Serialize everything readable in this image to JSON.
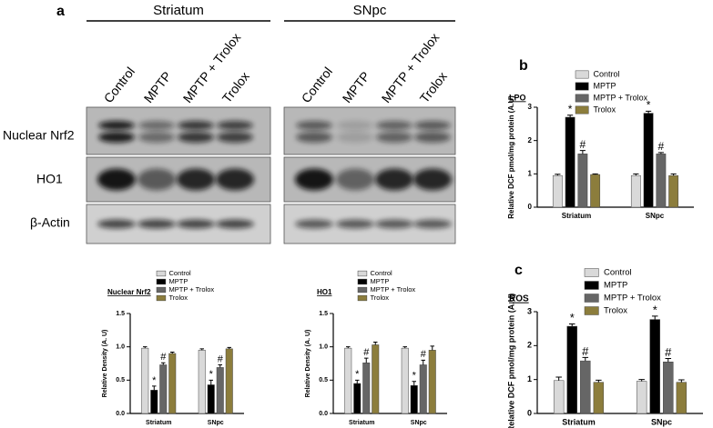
{
  "panels": [
    "a",
    "b",
    "c"
  ],
  "blot": {
    "groups": [
      "Striatum",
      "SNpc"
    ],
    "lanes": [
      "Control",
      "MPTP",
      "MPTP + Trolox",
      "Trolox"
    ],
    "rows": [
      "Nuclear Nrf2",
      "HO1",
      "β-Actin"
    ]
  },
  "chart_data": [
    {
      "type": "bar",
      "title": "Nuclear Nrf2",
      "y_label": "Relative Density (A. U)",
      "legend": "top",
      "categories": [
        "Striatum",
        "SNpc"
      ],
      "series": [
        {
          "name": "Control",
          "color": "#d9d9d9",
          "values": [
            0.98,
            0.95
          ],
          "errors": [
            0.02,
            0.02
          ]
        },
        {
          "name": "MPTP",
          "color": "#000000",
          "values": [
            0.35,
            0.43
          ],
          "errors": [
            0.06,
            0.07
          ],
          "annotation": "*"
        },
        {
          "name": "MPTP + Trolox",
          "color": "#666666",
          "values": [
            0.73,
            0.69
          ],
          "errors": [
            0.03,
            0.04
          ],
          "annotation": "#"
        },
        {
          "name": "Trolox",
          "color": "#8c7d3c",
          "values": [
            0.9,
            0.97
          ],
          "errors": [
            0.02,
            0.02
          ]
        }
      ],
      "ylim": [
        0,
        1.5
      ],
      "yticks": [
        {
          "value": 0,
          "label": "0.0"
        },
        {
          "value": 0.5,
          "label": "0.5"
        },
        {
          "value": 1,
          "label": "1.0"
        },
        {
          "value": 1.5,
          "label": "1.5"
        }
      ]
    },
    {
      "type": "bar",
      "title": "HO1",
      "y_label": "Relative Density (A. U)",
      "legend": "top",
      "categories": [
        "Striatum",
        "SNpc"
      ],
      "series": [
        {
          "name": "Control",
          "color": "#d9d9d9",
          "values": [
            0.98,
            0.98
          ],
          "errors": [
            0.02,
            0.02
          ]
        },
        {
          "name": "MPTP",
          "color": "#000000",
          "values": [
            0.45,
            0.42
          ],
          "errors": [
            0.05,
            0.06
          ],
          "annotation": "*"
        },
        {
          "name": "MPTP + Trolox",
          "color": "#666666",
          "values": [
            0.76,
            0.73
          ],
          "errors": [
            0.07,
            0.07
          ],
          "annotation": "#"
        },
        {
          "name": "Trolox",
          "color": "#8c7d3c",
          "values": [
            1.03,
            0.95
          ],
          "errors": [
            0.04,
            0.06
          ]
        }
      ],
      "ylim": [
        0,
        1.5
      ],
      "yticks": [
        {
          "value": 0,
          "label": "0.0"
        },
        {
          "value": 0.5,
          "label": "0.5"
        },
        {
          "value": 1,
          "label": "1.0"
        },
        {
          "value": 1.5,
          "label": "1.5"
        }
      ]
    },
    {
      "type": "bar",
      "title": "LPO",
      "y_label": "Relative DCF pmol/mg protein (A.U)",
      "legend": "top",
      "categories": [
        "Striatum",
        "SNpc"
      ],
      "series": [
        {
          "name": "Control",
          "color": "#d9d9d9",
          "values": [
            0.95,
            0.95
          ],
          "errors": [
            0.04,
            0.05
          ]
        },
        {
          "name": "MPTP",
          "color": "#000000",
          "values": [
            2.7,
            2.82
          ],
          "errors": [
            0.06,
            0.06
          ],
          "annotation": "*"
        },
        {
          "name": "MPTP + Trolox",
          "color": "#666666",
          "values": [
            1.6,
            1.6
          ],
          "errors": [
            0.1,
            0.04
          ],
          "annotation": "#"
        },
        {
          "name": "Trolox",
          "color": "#8c7d3c",
          "values": [
            0.98,
            0.95
          ],
          "errors": [
            0.02,
            0.05
          ]
        }
      ],
      "ylim": [
        0,
        3
      ],
      "yticks": [
        0,
        1,
        2,
        3
      ]
    },
    {
      "type": "bar",
      "title": "ROS",
      "y_label": "Relative DCF pmol/mg protein (A.U)",
      "legend": "top",
      "categories": [
        "Striatum",
        "SNpc"
      ],
      "series": [
        {
          "name": "Control",
          "color": "#d9d9d9",
          "values": [
            0.97,
            0.95
          ],
          "errors": [
            0.1,
            0.05
          ]
        },
        {
          "name": "MPTP",
          "color": "#000000",
          "values": [
            2.57,
            2.77
          ],
          "errors": [
            0.07,
            0.1
          ],
          "annotation": "*"
        },
        {
          "name": "MPTP + Trolox",
          "color": "#666666",
          "values": [
            1.55,
            1.52
          ],
          "errors": [
            0.1,
            0.1
          ],
          "annotation": "#"
        },
        {
          "name": "Trolox",
          "color": "#8c7d3c",
          "values": [
            0.92,
            0.92
          ],
          "errors": [
            0.06,
            0.07
          ]
        }
      ],
      "ylim": [
        0,
        3
      ],
      "yticks": [
        0,
        1,
        2,
        3
      ]
    }
  ]
}
